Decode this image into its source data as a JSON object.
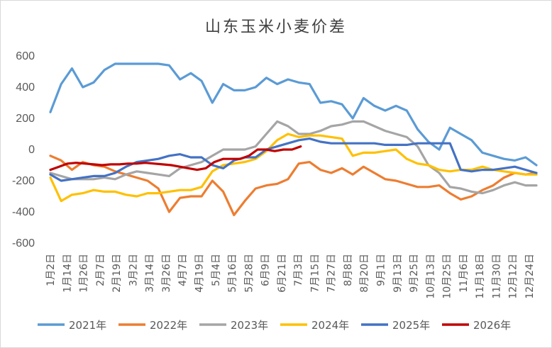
{
  "chart_data": {
    "type": "line",
    "title": "山东玉米小麦价差",
    "ylim": [
      -600,
      600
    ],
    "y_ticks": [
      "600",
      "400",
      "200",
      "0",
      "-200",
      "-400",
      "-600"
    ],
    "y_tick_values": [
      600,
      400,
      200,
      0,
      -200,
      -400,
      -600
    ],
    "x_labels": [
      "1月2日",
      "1月14日",
      "1月26日",
      "2月7日",
      "2月19日",
      "3月2日",
      "3月14日",
      "3月26日",
      "4月7日",
      "4月19日",
      "5月4日",
      "5月16日",
      "5月28日",
      "6月9日",
      "6月21日",
      "7月3日",
      "7月15日",
      "7月27日",
      "8月8日",
      "8月20日",
      "9月1日",
      "9月13日",
      "9月25日",
      "10月13日",
      "10月25日",
      "11月6日",
      "11月18日",
      "11月30日",
      "12月12日",
      "12月24日"
    ],
    "grid": false,
    "legend_position": "bottom",
    "series": [
      {
        "name": "2021年",
        "color": "#5B9BD5",
        "values": [
          240,
          420,
          520,
          400,
          430,
          510,
          550,
          550,
          550,
          550,
          550,
          540,
          450,
          490,
          440,
          300,
          420,
          380,
          380,
          400,
          460,
          420,
          450,
          430,
          420,
          300,
          310,
          290,
          200,
          330,
          280,
          250,
          280,
          250,
          130,
          50,
          0,
          140,
          100,
          60,
          -20,
          -40,
          -60,
          -70,
          -50,
          -100
        ]
      },
      {
        "name": "2022年",
        "color": "#ED7D31",
        "values": [
          -40,
          -70,
          -130,
          -80,
          -100,
          -110,
          -140,
          -160,
          -180,
          -200,
          -250,
          -400,
          -310,
          -300,
          -300,
          -200,
          -270,
          -420,
          -330,
          -250,
          -230,
          -220,
          -190,
          -90,
          -80,
          -130,
          -150,
          -120,
          -160,
          -110,
          -150,
          -190,
          -200,
          -220,
          -240,
          -240,
          -230,
          -280,
          -320,
          -300,
          -260,
          -230,
          -180,
          -150,
          -160,
          -150
        ]
      },
      {
        "name": "2023年",
        "color": "#A5A5A5",
        "values": [
          -150,
          -170,
          -190,
          -190,
          -190,
          -180,
          -190,
          -160,
          -140,
          -150,
          -160,
          -170,
          -120,
          -100,
          -80,
          -40,
          0,
          0,
          0,
          20,
          100,
          180,
          150,
          100,
          100,
          120,
          150,
          160,
          180,
          180,
          150,
          120,
          100,
          80,
          20,
          -100,
          -150,
          -240,
          -250,
          -270,
          -280,
          -260,
          -230,
          -210,
          -230,
          -230
        ]
      },
      {
        "name": "2024年",
        "color": "#FFC000",
        "values": [
          -180,
          -330,
          -290,
          -280,
          -260,
          -270,
          -270,
          -290,
          -300,
          -280,
          -280,
          -270,
          -260,
          -260,
          -240,
          -140,
          -100,
          -90,
          -80,
          -60,
          -10,
          60,
          100,
          80,
          90,
          90,
          80,
          70,
          -40,
          -20,
          -20,
          -10,
          0,
          -60,
          -90,
          -100,
          -130,
          -140,
          -130,
          -130,
          -110,
          -130,
          -140,
          -150,
          -160,
          -160
        ]
      },
      {
        "name": "2025年",
        "color": "#4472C4",
        "values": [
          -160,
          -200,
          -190,
          -180,
          -170,
          -170,
          -150,
          -110,
          -80,
          -70,
          -60,
          -40,
          -30,
          -50,
          -50,
          -100,
          -120,
          -70,
          -50,
          -50,
          0,
          20,
          40,
          60,
          70,
          50,
          40,
          40,
          40,
          40,
          40,
          30,
          30,
          30,
          40,
          40,
          40,
          40,
          -130,
          -140,
          -130,
          -130,
          -120,
          -110,
          -130,
          -150
        ]
      },
      {
        "name": "2026年",
        "color": "#C00000",
        "values": [
          -130,
          -110,
          -90,
          -85,
          -90,
          -95,
          -100,
          -95,
          -95,
          -90,
          -90,
          -85,
          -90,
          -95,
          -100,
          -110,
          -120,
          -130,
          -120,
          -80,
          -60,
          -60,
          -60,
          -40,
          0,
          0,
          -10,
          0,
          0,
          20
        ]
      }
    ]
  }
}
